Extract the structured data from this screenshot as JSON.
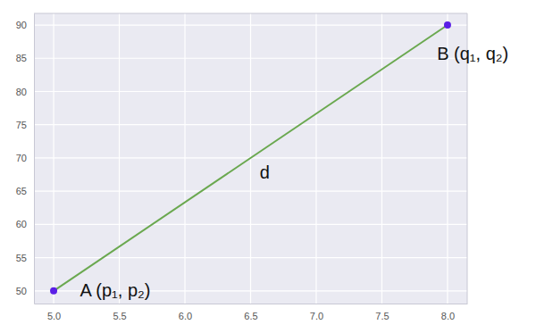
{
  "chart_data": {
    "type": "line",
    "x": [
      5.0,
      8.0
    ],
    "series": [
      {
        "type": "line",
        "color": "#6aa84f",
        "values": [
          50,
          90
        ]
      },
      {
        "type": "scatter",
        "color": "#5a1ee6",
        "marker": "circle",
        "values": [
          50,
          90
        ]
      }
    ],
    "xlim": [
      4.85,
      8.15
    ],
    "ylim": [
      48.1,
      91.75
    ],
    "xticks": [
      {
        "value": 5.0,
        "label": "5.0"
      },
      {
        "value": 5.5,
        "label": "5.5"
      },
      {
        "value": 6.0,
        "label": "6.0"
      },
      {
        "value": 6.5,
        "label": "6.5"
      },
      {
        "value": 7.0,
        "label": "7.0"
      },
      {
        "value": 7.5,
        "label": "7.5"
      },
      {
        "value": 8.0,
        "label": "8.0"
      }
    ],
    "yticks": [
      50,
      55,
      60,
      65,
      70,
      75,
      80,
      85,
      90
    ],
    "grid": true,
    "annotations": [
      {
        "text": "A (p₁, p₂)",
        "x": 5.2,
        "y": 49.2
      },
      {
        "text": "B (q₁, q₂)",
        "x": 7.92,
        "y": 84.8
      },
      {
        "text": "d",
        "x": 6.57,
        "y": 66.9
      }
    ]
  }
}
